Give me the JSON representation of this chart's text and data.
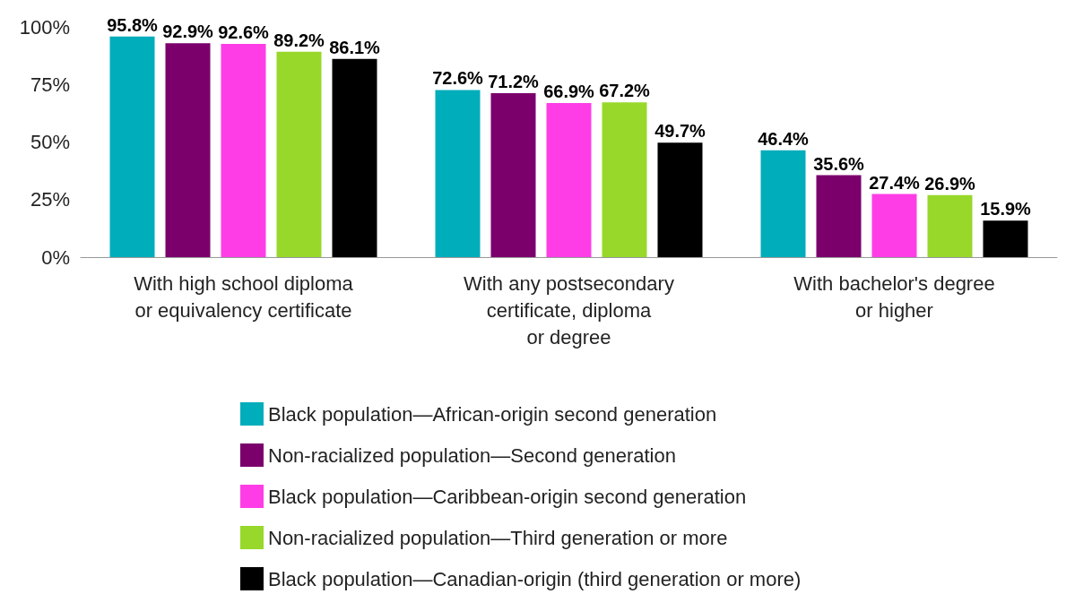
{
  "chart_data": {
    "type": "bar",
    "categories": [
      "With high school diploma\nor equivalency certificate",
      "With any postsecondary\ncertificate, diploma\nor degree",
      "With bachelor's degree\nor higher"
    ],
    "series": [
      {
        "name": "Black population—African-origin second generation",
        "color": "#00adbb",
        "values": [
          95.8,
          72.6,
          46.4
        ],
        "value_labels": [
          "95.8%",
          "72.6%",
          "46.4%"
        ]
      },
      {
        "name": "Non-racialized population—Second generation",
        "color": "#7b006c",
        "values": [
          92.9,
          71.2,
          35.6
        ],
        "value_labels": [
          "92.9%",
          "71.2%",
          "35.6%"
        ]
      },
      {
        "name": "Black population—Caribbean-origin second generation",
        "color": "#ff3de6",
        "values": [
          92.6,
          66.9,
          27.4
        ],
        "value_labels": [
          "92.6%",
          "66.9%",
          "27.4%"
        ]
      },
      {
        "name": "Non-racialized population—Third generation or more",
        "color": "#97d82a",
        "values": [
          89.2,
          67.2,
          26.9
        ],
        "value_labels": [
          "89.2%",
          "67.2%",
          "26.9%"
        ]
      },
      {
        "name": "Black population—Canadian-origin (third generation or more)",
        "color": "#000000",
        "values": [
          86.1,
          49.7,
          15.9
        ],
        "value_labels": [
          "86.1%",
          "49.7%",
          "15.9%"
        ]
      }
    ],
    "ylim": [
      0,
      100
    ],
    "yticks": [
      {
        "value": 0,
        "label": "0%"
      },
      {
        "value": 25,
        "label": "25%"
      },
      {
        "value": 50,
        "label": "50%"
      },
      {
        "value": 75,
        "label": "75%"
      },
      {
        "value": 100,
        "label": "100%"
      }
    ],
    "grid": false,
    "legend": "bottom"
  }
}
